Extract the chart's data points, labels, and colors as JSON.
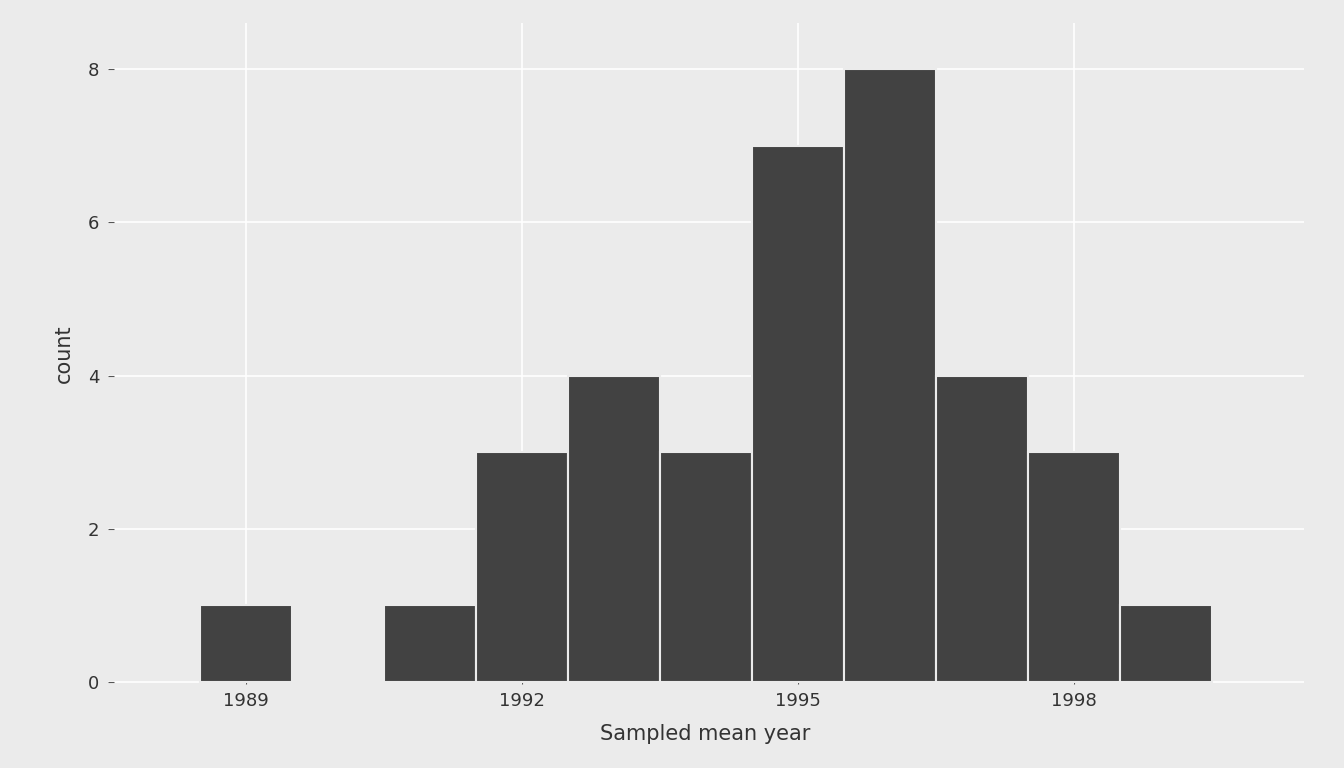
{
  "bar_centers": [
    1989,
    1990,
    1991,
    1992,
    1993,
    1994,
    1995,
    1996,
    1997,
    1998,
    1999
  ],
  "bar_heights": [
    1,
    0,
    1,
    3,
    4,
    3,
    7,
    8,
    4,
    3,
    1
  ],
  "bar_width": 1.0,
  "bar_color": "#424242",
  "bar_edgecolor": "#ebebeb",
  "bar_linewidth": 1.5,
  "xlabel": "Sampled mean year",
  "ylabel": "count",
  "xlim": [
    1987.5,
    2000.5
  ],
  "ylim": [
    -0.02,
    8.6
  ],
  "xticks": [
    1989,
    1992,
    1995,
    1998
  ],
  "yticks": [
    0,
    2,
    4,
    6,
    8
  ],
  "background_color": "#ebebeb",
  "panel_color": "#ebebeb",
  "grid_color": "#ffffff",
  "axis_label_fontsize": 15,
  "tick_fontsize": 13
}
